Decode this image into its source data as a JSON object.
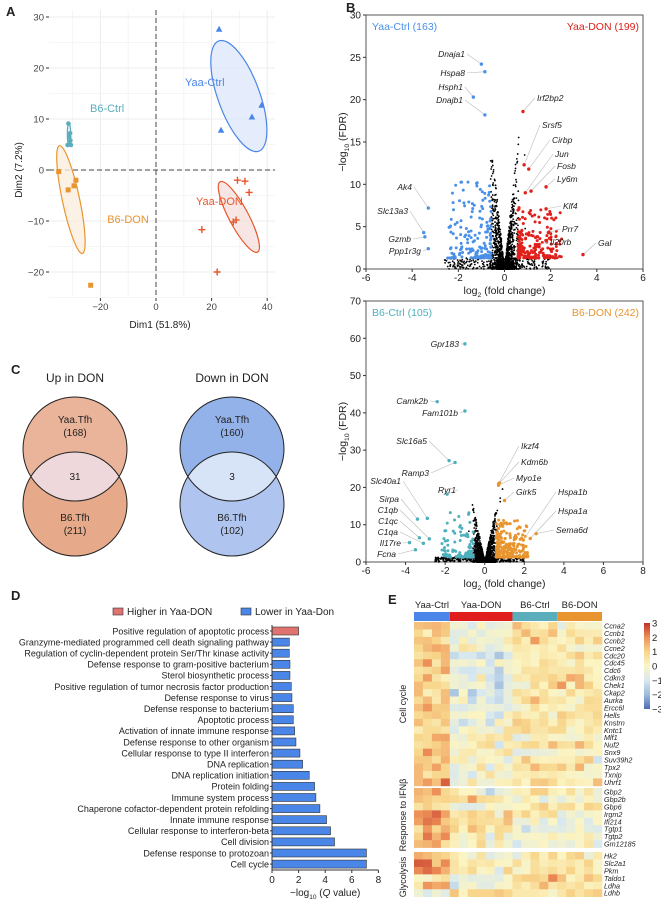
{
  "panels": {
    "A": "A",
    "B": "B",
    "C": "C",
    "D": "D",
    "E": "E"
  },
  "chart_data": [
    {
      "panel": "A",
      "type": "scatter",
      "xlabel": "Dim1 (51.8%)",
      "ylabel": "Dim2 (7.2%)",
      "xlim": [
        -38,
        43
      ],
      "ylim": [
        -25,
        31
      ],
      "xticks": [
        "−20",
        "0",
        "20",
        "40"
      ],
      "xtick_values": [
        -20,
        0,
        20,
        40
      ],
      "yticks": [
        "30",
        "20",
        "10",
        "0",
        "−10",
        "−20"
      ],
      "ytick_values": [
        30,
        20,
        10,
        0,
        -10,
        -20
      ],
      "grid": true,
      "reference_lines": "dashed at x=0 and y=0",
      "series": [
        {
          "name": "Yaa-Ctrl",
          "color": "#4a86e8",
          "marker": "triangle",
          "points": [
            [
              22.7,
              27.6
            ],
            [
              23.4,
              7.8
            ],
            [
              34.5,
              10.4
            ],
            [
              38,
              12.7
            ]
          ]
        },
        {
          "name": "B6-Ctrl",
          "color": "#5aaebb",
          "marker": "circle",
          "points": [
            [
              -31.5,
              9.1
            ],
            [
              -31.8,
              4.9
            ],
            [
              -31,
              5.1
            ],
            [
              -30.8,
              5.8
            ],
            [
              -30.9,
              7.2
            ],
            [
              -31.2,
              6.5
            ],
            [
              -30.6,
              4.9
            ]
          ]
        },
        {
          "name": "B6-DON",
          "color": "#e8952f",
          "marker": "square",
          "points": [
            [
              -35,
              -0.3
            ],
            [
              -31.6,
              -3.9
            ],
            [
              -29.5,
              -3.1
            ],
            [
              -28.8,
              -2
            ],
            [
              -23.5,
              -22.6
            ]
          ]
        },
        {
          "name": "Yaa-DON",
          "color": "#e8552a",
          "marker": "cross",
          "points": [
            [
              29.3,
              -2
            ],
            [
              32,
              -2.2
            ],
            [
              33.5,
              -4.4
            ],
            [
              28.8,
              -9.8
            ],
            [
              27.8,
              -10.2
            ],
            [
              16.5,
              -11.7
            ],
            [
              22,
              -20
            ]
          ]
        }
      ]
    },
    {
      "panel": "B-top",
      "type": "scatter",
      "xlabel": {
        "pre": "log",
        "sub": "2",
        "post": " (fold change)"
      },
      "ylabel": {
        "pre": "−log",
        "sub": "10",
        "post": " (FDR)"
      },
      "xlim": [
        -6,
        6
      ],
      "ylim": [
        0,
        30
      ],
      "xticks": [
        "-6",
        "-4",
        "-2",
        "0",
        "2",
        "4",
        "6"
      ],
      "yticks": [
        "0",
        "5",
        "10",
        "15",
        "20",
        "25",
        "30"
      ],
      "down_label": "Yaa-Ctrl (163)",
      "down_color": "#4a90e8",
      "down_count": 163,
      "up_label": "Yaa-DON (199)",
      "up_color": "#e0201b",
      "up_count": 199,
      "labeled_genes": [
        {
          "gene": "Dnaja1",
          "x": -1.0,
          "y": 24.2
        },
        {
          "gene": "Hspa8",
          "x": -0.85,
          "y": 23.3
        },
        {
          "gene": "Hsph1",
          "x": -1.35,
          "y": 20.3
        },
        {
          "gene": "Dnajb1",
          "x": -0.85,
          "y": 18.2
        },
        {
          "gene": "Irf2bp2",
          "x": 0.8,
          "y": 18.6
        },
        {
          "gene": "Srsf5",
          "x": 0.85,
          "y": 12.3
        },
        {
          "gene": "Cirbp",
          "x": 1.05,
          "y": 11.8
        },
        {
          "gene": "Jun",
          "x": 0.9,
          "y": 9.0
        },
        {
          "gene": "Fosb",
          "x": 1.15,
          "y": 9.2
        },
        {
          "gene": "Ly6m",
          "x": 1.8,
          "y": 9.7
        },
        {
          "gene": "Klf4",
          "x": 1.8,
          "y": 7.1
        },
        {
          "gene": "Prr7",
          "x": 1.9,
          "y": 4.3
        },
        {
          "gene": "Il20rb",
          "x": 1.5,
          "y": 2.9
        },
        {
          "gene": "Gal",
          "x": 3.4,
          "y": 1.7
        },
        {
          "gene": "Ak4",
          "x": -3.3,
          "y": 7.2
        },
        {
          "gene": "Slc13a3",
          "x": -3.5,
          "y": 4.3
        },
        {
          "gene": "Gzmb",
          "x": -3.45,
          "y": 3.8
        },
        {
          "gene": "Ppp1r3g",
          "x": -3.3,
          "y": 2.4
        }
      ]
    },
    {
      "panel": "B-bottom",
      "type": "scatter",
      "xlabel": {
        "pre": "log",
        "sub": "2",
        "post": " (fold change)"
      },
      "ylabel": {
        "pre": "−log",
        "sub": "10",
        "post": " (FDR)"
      },
      "xlim": [
        -6,
        8
      ],
      "ylim": [
        0,
        70
      ],
      "xticks": [
        "-6",
        "-4",
        "-2",
        "0",
        "2",
        "4",
        "6",
        "8"
      ],
      "yticks": [
        "0",
        "10",
        "20",
        "30",
        "40",
        "50",
        "60",
        "70"
      ],
      "down_label": "B6-Ctrl (105)",
      "down_color": "#4fb0bd",
      "down_count": 105,
      "up_label": "B6-DON (242)",
      "up_color": "#e8952f",
      "up_count": 242,
      "labeled_genes": [
        {
          "gene": "Gpr183",
          "x": -1.0,
          "y": 58.5
        },
        {
          "gene": "Camk2b",
          "x": -2.4,
          "y": 43
        },
        {
          "gene": "Fam101b",
          "x": -1.0,
          "y": 40.5
        },
        {
          "gene": "Slc16a5",
          "x": -1.8,
          "y": 27.2
        },
        {
          "gene": "Ramp3",
          "x": -1.5,
          "y": 26.7
        },
        {
          "gene": "Ryr1",
          "x": -1.9,
          "y": 18.2
        },
        {
          "gene": "Slc40a1",
          "x": -2.9,
          "y": 11.7
        },
        {
          "gene": "Sirpa",
          "x": -3.4,
          "y": 11.5
        },
        {
          "gene": "C1qb",
          "x": -2.8,
          "y": 6.2
        },
        {
          "gene": "C1qc",
          "x": -3.3,
          "y": 6.5
        },
        {
          "gene": "C1qa",
          "x": -3.1,
          "y": 5.0
        },
        {
          "gene": "Il17re",
          "x": -3.8,
          "y": 5.2
        },
        {
          "gene": "Fcna",
          "x": -3.5,
          "y": 3.3
        },
        {
          "gene": "Ikzf4",
          "x": 0.7,
          "y": 21.0
        },
        {
          "gene": "Kdm6b",
          "x": 0.75,
          "y": 21.2
        },
        {
          "gene": "Myo1e",
          "x": 0.7,
          "y": 20.6
        },
        {
          "gene": "Girk5",
          "x": 1.0,
          "y": 16.5
        },
        {
          "gene": "Hspa1b",
          "x": 1.95,
          "y": 5.9
        },
        {
          "gene": "Hspa1a",
          "x": 2.3,
          "y": 6.3
        },
        {
          "gene": "Sema6d",
          "x": 2.6,
          "y": 7.6
        }
      ]
    },
    {
      "panel": "C",
      "type": "venn",
      "diagrams": [
        {
          "title": "Up in DON",
          "top_label": "Yaa.Tfh",
          "top_count": "(168)",
          "bottom_label": "B6.Tfh",
          "bottom_count": "(211)",
          "overlap": "31",
          "colors": {
            "top": "#eab49a",
            "bottom": "#e6a98a",
            "overlap": "#efd8dc"
          }
        },
        {
          "title": "Down in DON",
          "top_label": "Yaa.Tfh",
          "top_count": "(160)",
          "bottom_label": "B6.Tfh",
          "bottom_count": "(102)",
          "overlap": "3",
          "colors": {
            "top": "#93b2ea",
            "bottom": "#afc5ef",
            "overlap": "#d7e3f6"
          }
        }
      ]
    },
    {
      "panel": "D",
      "type": "bar",
      "orientation": "horizontal",
      "xlabel": {
        "pre": "−log",
        "sub": "10",
        "post": " (",
        "italic": "Q",
        "post2": " value)"
      },
      "xlim": [
        0,
        8
      ],
      "xticks": [
        "0",
        "2",
        "4",
        "6",
        "8"
      ],
      "legend": [
        {
          "name": "Higher in Yaa-DON",
          "color": "#e07370"
        },
        {
          "name": "Lower in Yaa-Don",
          "color": "#4a86e8"
        }
      ],
      "legend_position": "top",
      "categories": [
        "Positive regulation of apoptotic process",
        "Granzyme-mediated programmed cell death signaling pathway",
        "Regulation of cyclin-dependent protein Ser/Thr kinase activity",
        "Defense response to gram-positive bacterium",
        "Sterol biosynthetic process",
        "Positive regulation of tumor necrosis factor production",
        "Defense response to virus",
        "Defense response to bacterium",
        "Apoptotic process",
        "Activation of innate immune response",
        "Defense response to other organism",
        "Cellular response to type II interferon",
        "DNA replication",
        "DNA replication initiation",
        "Protein folding",
        "Immune system process",
        "Chaperone cofactor-dependent protein refolding",
        "Innate immune response",
        "Cellular response to interferon-beta",
        "Cell division",
        "Defense response to protozoan",
        "Cell cycle"
      ],
      "values": [
        2.0,
        1.3,
        1.3,
        1.35,
        1.35,
        1.45,
        1.5,
        1.6,
        1.6,
        1.7,
        1.8,
        2.1,
        2.3,
        2.8,
        3.2,
        3.3,
        3.6,
        4.1,
        4.4,
        4.7,
        7.1,
        7.1
      ],
      "direction": [
        "higher",
        "lower",
        "lower",
        "lower",
        "lower",
        "lower",
        "lower",
        "lower",
        "lower",
        "lower",
        "lower",
        "lower",
        "lower",
        "lower",
        "lower",
        "lower",
        "lower",
        "lower",
        "lower",
        "lower",
        "lower",
        "lower"
      ]
    },
    {
      "panel": "E",
      "type": "heatmap",
      "groups": [
        {
          "name": "Yaa-Ctrl",
          "color": "#4a86e8",
          "samples": 4
        },
        {
          "name": "Yaa-DON",
          "color": "#e01e1e",
          "samples": 7
        },
        {
          "name": "B6-Ctrl",
          "color": "#5aaebb",
          "samples": 5
        },
        {
          "name": "B6-DON",
          "color": "#e8952f",
          "samples": 5
        }
      ],
      "colorbar": {
        "ticks": [
          "3",
          "2",
          "1",
          "0",
          "−1",
          "−2",
          "−3"
        ],
        "range": [
          -3,
          3
        ],
        "colors": [
          "#4a6db3",
          "#9dbbdc",
          "#d7e8f0",
          "#fbf5c4",
          "#f8d68c",
          "#ee9158",
          "#c32f2a"
        ]
      },
      "row_blocks": [
        {
          "name": "Cell cycle",
          "rows": [
            {
              "gene": "Ccna2",
              "means": [
                1.3,
                -0.5,
                0.6,
                -0.2
              ]
            },
            {
              "gene": "Ccnb1",
              "means": [
                0.9,
                -0.4,
                0.7,
                0.6
              ]
            },
            {
              "gene": "Ccnb2",
              "means": [
                0.6,
                -0.3,
                0.8,
                0.5
              ]
            },
            {
              "gene": "Ccne2",
              "means": [
                1.3,
                -0.3,
                0.1,
                0.2
              ]
            },
            {
              "gene": "Cdc20",
              "means": [
                0.9,
                -0.7,
                0.8,
                0.6
              ]
            },
            {
              "gene": "Cdc45",
              "means": [
                1.4,
                -0.5,
                0.6,
                0.2
              ]
            },
            {
              "gene": "Cdc6",
              "means": [
                1.3,
                -0.8,
                0.3,
                0.5
              ]
            },
            {
              "gene": "Cdkn3",
              "means": [
                0.8,
                -0.7,
                0.7,
                0.6
              ]
            },
            {
              "gene": "Chek1",
              "means": [
                1.0,
                -0.5,
                0.1,
                0.7
              ]
            },
            {
              "gene": "Ckap2",
              "means": [
                1.0,
                -0.8,
                0.7,
                0.5
              ]
            },
            {
              "gene": "Aurka",
              "means": [
                1.1,
                -0.6,
                0.9,
                0.2
              ]
            },
            {
              "gene": "Ercc6l",
              "means": [
                1.2,
                -0.6,
                0.4,
                0.3
              ]
            },
            {
              "gene": "Hells",
              "means": [
                1.2,
                -0.5,
                0.5,
                0.6
              ]
            },
            {
              "gene": "Knstrn",
              "means": [
                0.7,
                -0.4,
                0.7,
                0.4
              ]
            },
            {
              "gene": "Kntc1",
              "means": [
                0.6,
                -0.4,
                1.0,
                0.5
              ]
            },
            {
              "gene": "Mlf1",
              "means": [
                1.2,
                0.4,
                -0.2,
                0.0
              ]
            },
            {
              "gene": "Nuf2",
              "means": [
                1.0,
                0.2,
                0.7,
                0.6
              ]
            },
            {
              "gene": "Snx9",
              "means": [
                1.4,
                0.3,
                -0.2,
                0.2
              ]
            },
            {
              "gene": "Suv39h2",
              "means": [
                1.3,
                -0.1,
                0.5,
                0.3
              ]
            },
            {
              "gene": "Tpx2",
              "means": [
                1.1,
                0.0,
                0.6,
                0.4
              ]
            },
            {
              "gene": "Txnip",
              "means": [
                0.8,
                -0.3,
                0.6,
                0.1
              ]
            },
            {
              "gene": "Uhrf1",
              "means": [
                1.3,
                -0.2,
                0.6,
                0.3
              ]
            }
          ]
        },
        {
          "name": "Response to IFNβ",
          "rows": [
            {
              "gene": "Gbp2",
              "means": [
                1.5,
                -0.3,
                0.3,
                0.3
              ]
            },
            {
              "gene": "Gbp2b",
              "means": [
                1.2,
                0.8,
                -0.4,
                -0.5
              ]
            },
            {
              "gene": "Gbp6",
              "means": [
                0.8,
                -0.4,
                0.4,
                0.8
              ]
            },
            {
              "gene": "Irgm2",
              "means": [
                1.6,
                0.5,
                0.2,
                -0.2
              ]
            },
            {
              "gene": "Ifi214",
              "means": [
                1.6,
                0.5,
                0.0,
                -0.5
              ]
            },
            {
              "gene": "Tgtp1",
              "means": [
                1.5,
                0.5,
                -0.4,
                -0.3
              ]
            },
            {
              "gene": "Tgtp2",
              "means": [
                1.8,
                0.2,
                -0.3,
                -0.3
              ]
            },
            {
              "gene": "Gm12185",
              "means": [
                1.2,
                0.3,
                -0.6,
                -0.5
              ]
            }
          ]
        },
        {
          "name": "Glycolysis",
          "rows": [
            {
              "gene": "Hk2",
              "means": [
                1.4,
                0.0,
                0.5,
                0.7
              ]
            },
            {
              "gene": "Slc2a1",
              "means": [
                2.0,
                0.2,
                0.4,
                0.4
              ]
            },
            {
              "gene": "Pkm",
              "means": [
                1.8,
                0.2,
                0.5,
                0.5
              ]
            },
            {
              "gene": "Taldo1",
              "means": [
                0.3,
                -0.6,
                1.0,
                0.8
              ]
            },
            {
              "gene": "Ldha",
              "means": [
                1.3,
                -0.3,
                0.7,
                0.5
              ]
            },
            {
              "gene": "Ldhb",
              "means": [
                -0.5,
                0.8,
                0.3,
                0.7
              ]
            }
          ]
        }
      ]
    }
  ]
}
